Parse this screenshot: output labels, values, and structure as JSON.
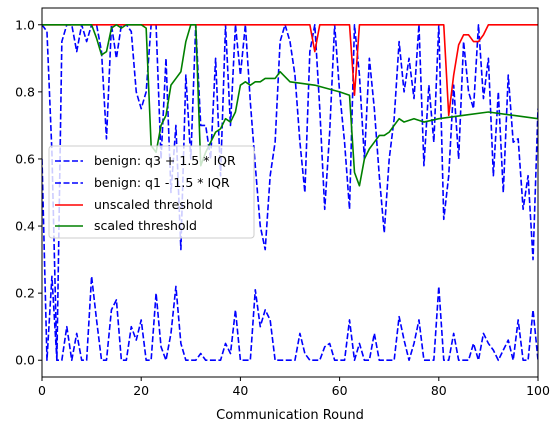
{
  "chart_data": {
    "type": "line",
    "title": "",
    "xlabel": "Communication Round",
    "ylabel": "",
    "xlim": [
      0,
      100
    ],
    "ylim": [
      -0.05,
      1.05
    ],
    "xticks": [
      0,
      20,
      40,
      60,
      80,
      100
    ],
    "yticks": [
      0.0,
      0.2,
      0.4,
      0.6,
      0.8,
      1.0
    ],
    "xtick_labels": [
      "0",
      "20",
      "40",
      "60",
      "80",
      "100"
    ],
    "ytick_labels": [
      "0.0",
      "0.2",
      "0.4",
      "0.6",
      "0.8",
      "1.0"
    ],
    "grid": false,
    "legend_position": "center-left",
    "series": [
      {
        "name": "benign: q3 + 1.5 * IQR",
        "color": "#0000ff",
        "style": "dashed",
        "x": [
          0,
          1,
          2,
          3,
          4,
          5,
          6,
          7,
          8,
          9,
          10,
          11,
          12,
          13,
          14,
          15,
          16,
          17,
          18,
          19,
          20,
          21,
          22,
          23,
          24,
          25,
          26,
          27,
          28,
          29,
          30,
          31,
          32,
          33,
          34,
          35,
          36,
          37,
          38,
          39,
          40,
          41,
          42,
          43,
          44,
          45,
          46,
          47,
          48,
          49,
          50,
          51,
          52,
          53,
          54,
          55,
          56,
          57,
          58,
          59,
          60,
          61,
          62,
          63,
          64,
          65,
          66,
          67,
          68,
          69,
          70,
          71,
          72,
          73,
          74,
          75,
          76,
          77,
          78,
          79,
          80,
          81,
          82,
          83,
          84,
          85,
          86,
          87,
          88,
          89,
          90,
          91,
          92,
          93,
          94,
          95,
          96,
          97,
          98,
          99,
          100
        ],
        "values": [
          1.0,
          0.98,
          0.62,
          0.0,
          0.95,
          1.0,
          1.0,
          0.92,
          1.0,
          0.95,
          1.0,
          1.0,
          0.92,
          0.66,
          1.0,
          0.9,
          1.0,
          1.0,
          0.98,
          0.8,
          0.75,
          0.8,
          1.0,
          1.0,
          0.6,
          0.9,
          0.5,
          0.7,
          0.33,
          0.85,
          0.6,
          1.0,
          0.7,
          0.7,
          0.6,
          0.9,
          0.55,
          1.0,
          0.7,
          1.0,
          0.85,
          1.0,
          0.77,
          0.58,
          0.4,
          0.33,
          0.55,
          0.65,
          0.95,
          1.0,
          0.95,
          0.85,
          0.65,
          0.5,
          0.92,
          1.0,
          0.75,
          0.45,
          0.68,
          1.0,
          0.8,
          0.65,
          0.45,
          1.0,
          0.85,
          0.6,
          0.9,
          0.75,
          0.55,
          0.38,
          0.6,
          0.72,
          0.95,
          0.8,
          0.9,
          0.78,
          1.0,
          0.58,
          0.82,
          0.65,
          1.0,
          0.42,
          0.55,
          0.82,
          0.6,
          0.95,
          0.8,
          0.75,
          1.0,
          0.78,
          0.9,
          0.55,
          0.8,
          0.5,
          0.85,
          0.65,
          0.66,
          0.45,
          0.55,
          0.3,
          0.75
        ]
      },
      {
        "name": "benign: q1 - 1.5 * IQR",
        "color": "#0000ff",
        "style": "dashed",
        "x": [
          0,
          1,
          2,
          3,
          4,
          5,
          6,
          7,
          8,
          9,
          10,
          11,
          12,
          13,
          14,
          15,
          16,
          17,
          18,
          19,
          20,
          21,
          22,
          23,
          24,
          25,
          26,
          27,
          28,
          29,
          30,
          31,
          32,
          33,
          34,
          35,
          36,
          37,
          38,
          39,
          40,
          41,
          42,
          43,
          44,
          45,
          46,
          47,
          48,
          49,
          50,
          51,
          52,
          53,
          54,
          55,
          56,
          57,
          58,
          59,
          60,
          61,
          62,
          63,
          64,
          65,
          66,
          67,
          68,
          69,
          70,
          71,
          72,
          73,
          74,
          75,
          76,
          77,
          78,
          79,
          80,
          81,
          82,
          83,
          84,
          85,
          86,
          87,
          88,
          89,
          90,
          91,
          92,
          93,
          94,
          95,
          96,
          97,
          98,
          99,
          100
        ],
        "values": [
          0.6,
          0.0,
          0.25,
          0.0,
          0.0,
          0.1,
          0.0,
          0.08,
          0.0,
          0.0,
          0.25,
          0.12,
          0.0,
          0.0,
          0.15,
          0.18,
          0.0,
          0.0,
          0.1,
          0.06,
          0.12,
          0.0,
          0.0,
          0.2,
          0.04,
          0.0,
          0.08,
          0.22,
          0.05,
          0.0,
          0.0,
          0.0,
          0.02,
          0.0,
          0.0,
          0.0,
          0.0,
          0.05,
          0.02,
          0.15,
          0.0,
          0.0,
          0.0,
          0.21,
          0.1,
          0.15,
          0.12,
          0.0,
          0.0,
          0.0,
          0.0,
          0.0,
          0.08,
          0.02,
          0.0,
          0.0,
          0.0,
          0.04,
          0.05,
          0.0,
          0.0,
          0.0,
          0.12,
          0.0,
          0.05,
          0.0,
          0.0,
          0.08,
          0.0,
          0.0,
          0.0,
          0.0,
          0.13,
          0.06,
          0.0,
          0.05,
          0.12,
          0.0,
          0.0,
          0.0,
          0.22,
          0.0,
          0.0,
          0.08,
          0.0,
          0.0,
          0.0,
          0.05,
          0.0,
          0.08,
          0.05,
          0.03,
          0.0,
          0.03,
          0.06,
          0.0,
          0.12,
          0.0,
          0.0,
          0.15,
          0.0
        ]
      },
      {
        "name": "unscaled threshold",
        "color": "#ff0000",
        "style": "solid",
        "x": [
          0,
          54,
          55,
          56,
          62,
          63,
          64,
          65,
          81,
          82,
          83,
          84,
          85,
          86,
          87,
          88,
          89,
          90,
          91,
          92,
          100
        ],
        "values": [
          1.0,
          1.0,
          0.92,
          1.0,
          1.0,
          0.79,
          1.0,
          1.0,
          1.0,
          0.73,
          0.85,
          0.94,
          0.97,
          0.97,
          0.95,
          0.95,
          0.97,
          1.0,
          1.0,
          1.0,
          1.0
        ]
      },
      {
        "name": "scaled threshold",
        "color": "#008000",
        "style": "solid",
        "x": [
          0,
          10,
          11,
          12,
          13,
          14,
          15,
          16,
          17,
          18,
          19,
          20,
          21,
          22,
          23,
          24,
          25,
          26,
          27,
          28,
          29,
          30,
          31,
          32,
          33,
          34,
          35,
          36,
          37,
          38,
          39,
          40,
          41,
          42,
          43,
          44,
          45,
          46,
          47,
          48,
          50,
          55,
          60,
          62,
          63,
          64,
          65,
          66,
          67,
          68,
          69,
          70,
          71,
          72,
          73,
          75,
          77,
          80,
          85,
          90,
          95,
          100
        ],
        "values": [
          1.0,
          1.0,
          0.96,
          0.91,
          0.92,
          0.99,
          1.0,
          0.99,
          1.0,
          1.0,
          1.0,
          1.0,
          0.99,
          0.64,
          0.62,
          0.7,
          0.73,
          0.82,
          0.84,
          0.86,
          0.95,
          1.0,
          1.0,
          0.58,
          0.62,
          0.65,
          0.68,
          0.69,
          0.72,
          0.71,
          0.74,
          0.82,
          0.83,
          0.82,
          0.83,
          0.83,
          0.84,
          0.84,
          0.84,
          0.86,
          0.83,
          0.82,
          0.8,
          0.79,
          0.56,
          0.52,
          0.6,
          0.63,
          0.65,
          0.67,
          0.67,
          0.68,
          0.7,
          0.72,
          0.71,
          0.72,
          0.71,
          0.72,
          0.73,
          0.74,
          0.73,
          0.72
        ]
      }
    ]
  }
}
